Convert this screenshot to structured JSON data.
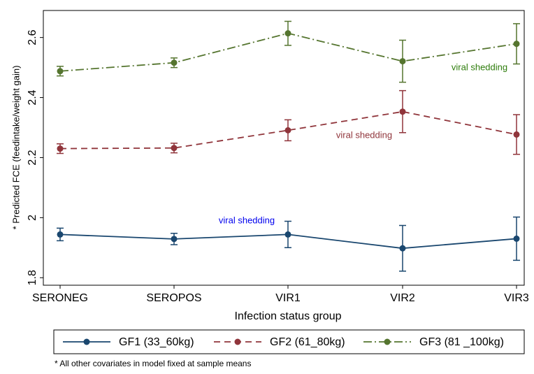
{
  "chart_data": {
    "type": "line",
    "y_label": "* Predicted FCE (feedintake/weight gain)",
    "x_label": "Infection status group",
    "note": "* All other covariates in model fixed at sample means",
    "categories": [
      "SERONEG",
      "SEROPOS",
      "VIR1",
      "VIR2",
      "VIR3"
    ],
    "series": [
      {
        "name": "GF1 (33_60kg)",
        "color": "#1a476f",
        "line_style": "solid",
        "values": [
          1.944,
          1.929,
          1.944,
          1.898,
          1.93
        ],
        "errors": [
          0.021,
          0.019,
          0.044,
          0.076,
          0.072
        ]
      },
      {
        "name": "GF2 (61_80kg)",
        "color": "#90353b",
        "line_style": "dash",
        "values": [
          2.23,
          2.232,
          2.291,
          2.353,
          2.277
        ],
        "errors": [
          0.016,
          0.016,
          0.035,
          0.07,
          0.066
        ]
      },
      {
        "name": "GF3 (81 _100kg)",
        "color": "#55752f",
        "line_style": "dashdot",
        "values": [
          2.488,
          2.516,
          2.614,
          2.521,
          2.579
        ],
        "errors": [
          0.016,
          0.016,
          0.04,
          0.07,
          0.067
        ]
      }
    ],
    "annotations": [
      {
        "text": "viral shedding",
        "color": "#0000ee"
      },
      {
        "text": "viral shedding",
        "color": "#90353b"
      },
      {
        "text": "viral shedding",
        "color": "#2e7d0c"
      }
    ],
    "ylim": [
      1.775,
      2.69
    ],
    "yticks": [
      1.8,
      2,
      2.2,
      2.4,
      2.6
    ],
    "grid": false
  }
}
